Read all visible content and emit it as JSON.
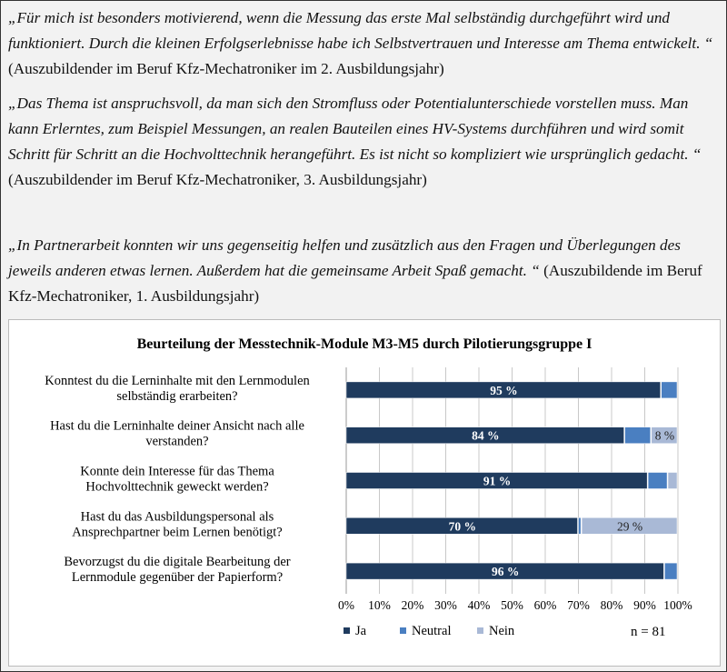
{
  "quotes": [
    {
      "quote": "„Für mich ist besonders motivierend, wenn die Messung das erste Mal selbständig durchgeführt wird und funktioniert. Durch die kleinen Erfolgserlebnisse habe ich Selbstvertrauen und Interesse am Thema entwickelt. “",
      "source": " (Auszubildender im Beruf Kfz-Mechatroniker im 2. Ausbildungsjahr)"
    },
    {
      "quote": "„Das Thema ist anspruchsvoll, da man sich den Stromfluss oder Potentialunterschiede vorstellen muss. Man kann Erlerntes, zum Beispiel Messungen, an realen Bauteilen eines HV-Systems durchführen und wird somit Schritt für Schritt an die Hochvolttechnik herangeführt. Es ist nicht so kompliziert wie ursprünglich gedacht. “",
      "source": " (Auszubildender im Beruf Kfz-Mechatroniker, 3. Ausbildungsjahr)"
    },
    {
      "quote": "„In Partnerarbeit konnten wir uns gegenseitig helfen und zusätzlich aus den Fragen und Überlegungen des jeweils anderen etwas lernen. Außerdem hat die gemeinsame Arbeit Spaß gemacht. “",
      "source": " (Auszubildende im Beruf Kfz-Mechatroniker, 1. Ausbildungsjahr)"
    }
  ],
  "chart_data": {
    "type": "bar",
    "orientation": "horizontal",
    "stacked": true,
    "title": "Beurteilung der Messtechnik-Module M3-M5 durch Pilotierungsgruppe I",
    "categories": [
      [
        "Konntest du die Lerninhalte mit den Lernmodulen",
        "selbständig erarbeiten?"
      ],
      [
        "Hast du die Lerninhalte deiner Ansicht nach alle",
        "verstanden?"
      ],
      [
        "Konnte dein Interesse für das Thema",
        "Hochvolttechnik geweckt werden?"
      ],
      [
        "Hast du das Ausbildungspersonal als",
        "Ansprechpartner beim Lernen benötigt?"
      ],
      [
        "Bevorzugst du die digitale Bearbeitung der",
        "Lernmodule gegenüber der Papierform?"
      ]
    ],
    "series": [
      {
        "name": "Ja",
        "color": "#1f3b5e",
        "values": [
          95,
          84,
          91,
          70,
          96
        ],
        "labels": [
          "95 %",
          "84 %",
          "91 %",
          "70 %",
          "96 %"
        ]
      },
      {
        "name": "Neutral",
        "color": "#4a7fc1",
        "values": [
          5,
          8,
          6,
          1,
          4
        ],
        "labels": [
          "",
          "",
          "",
          "",
          ""
        ]
      },
      {
        "name": "Nein",
        "color": "#a9b9d6",
        "values": [
          0,
          8,
          3,
          29,
          0
        ],
        "labels": [
          "",
          "8 %",
          "",
          "29 %",
          ""
        ]
      }
    ],
    "xlim": [
      0,
      100
    ],
    "xticks": [
      "0%",
      "10%",
      "20%",
      "30%",
      "40%",
      "50%",
      "60%",
      "70%",
      "80%",
      "90%",
      "100%"
    ],
    "grid": true,
    "legend": "bottom",
    "annotation": "n = 81"
  }
}
